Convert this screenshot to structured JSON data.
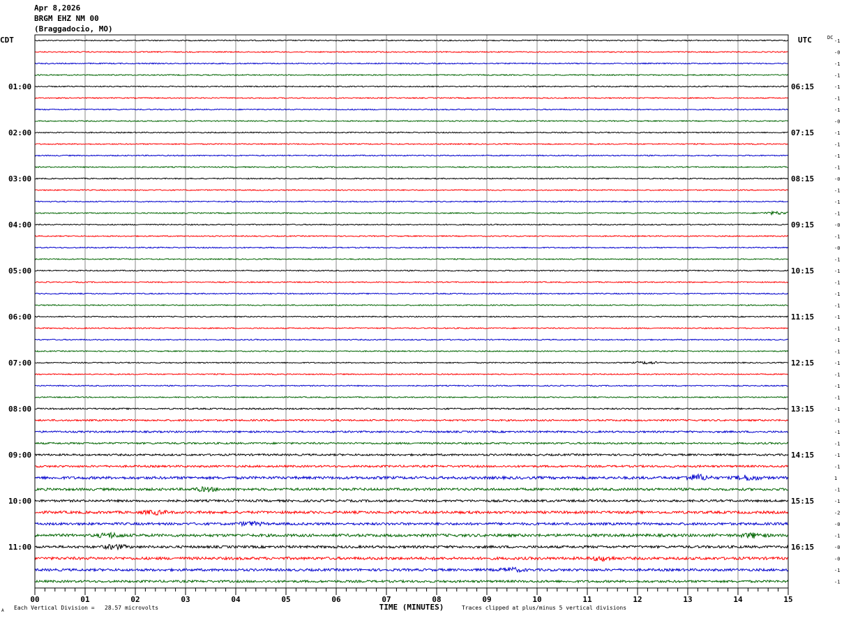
{
  "header": {
    "date": "Apr 8,2026",
    "station": "BRGM EHZ NM 00",
    "location": "(Braggadocio, MO)"
  },
  "labels": {
    "left_tz": "CDT",
    "right_tz": "UTC",
    "dc": "DC",
    "xlabel": "TIME (MINUTES)",
    "footer_left": "Each Vertical Division =   28.57 microvolts",
    "footer_right": "Traces clipped at plus/minus 5 vertical divisions",
    "corner_mark": "A"
  },
  "colors": {
    "trace_cycle": [
      "#000000",
      "#ff0000",
      "#0000cc",
      "#006400"
    ],
    "grid": "#888888",
    "background": "#ffffff"
  },
  "chart_data": {
    "type": "line",
    "title": "BRGM EHZ NM 00",
    "xlabel": "TIME (MINUTES)",
    "xlim": [
      0,
      15
    ],
    "x_tick_labels": [
      "00",
      "01",
      "02",
      "03",
      "04",
      "05",
      "06",
      "07",
      "08",
      "09",
      "10",
      "11",
      "12",
      "13",
      "14",
      "15"
    ],
    "rows_per_hour": 4,
    "row_count": 48,
    "left_hour_labels": [
      "01:00",
      "02:00",
      "03:00",
      "04:00",
      "05:00",
      "06:00",
      "07:00",
      "08:00",
      "09:00",
      "10:00",
      "11:00"
    ],
    "right_hour_labels": [
      "06:15",
      "07:15",
      "08:15",
      "09:15",
      "10:15",
      "11:15",
      "12:15",
      "13:15",
      "14:15",
      "15:15",
      "16:15"
    ],
    "dc_offsets": [
      "-1",
      "-0",
      "-1",
      "-1",
      "-1",
      "-1",
      "-1",
      "-0",
      "-1",
      "-1",
      "-1",
      "-1",
      "-0",
      "-1",
      "-1",
      "-1",
      "-0",
      "-1",
      "-0",
      "-1",
      "-1",
      "-1",
      "-1",
      "-1",
      "-1",
      "-1",
      "-1",
      "-1",
      "-1",
      "-1",
      "-1",
      "-1",
      "-1",
      "-1",
      "-1",
      "-1",
      "-1",
      "-1",
      "1",
      "-1",
      "-1",
      "-2",
      "-0",
      "-1",
      "-0",
      "-0",
      "-1",
      "-1"
    ],
    "noise_amplitude": [
      1,
      1,
      1,
      1,
      1,
      1,
      1,
      1,
      1,
      1,
      1,
      1,
      1,
      1,
      1,
      1,
      1,
      1,
      1,
      1,
      1,
      1,
      1,
      1,
      1,
      1,
      1,
      1,
      1,
      1,
      1,
      1,
      1.3,
      1.5,
      1.6,
      1.6,
      1.7,
      1.8,
      2.4,
      2.2,
      2,
      2.3,
      2.2,
      2.5,
      2.2,
      2.4,
      2.2,
      2
    ],
    "events": [
      {
        "row": 15,
        "minute": 14.75,
        "amplitude": 2.5
      },
      {
        "row": 28,
        "minute": 12.2,
        "amplitude": 2.0
      },
      {
        "row": 38,
        "minute": 13.2,
        "amplitude": 5.0
      },
      {
        "row": 38,
        "minute": 14.2,
        "amplitude": 4.0
      },
      {
        "row": 39,
        "minute": 3.4,
        "amplitude": 3.0
      },
      {
        "row": 41,
        "minute": 2.4,
        "amplitude": 3.0
      },
      {
        "row": 42,
        "minute": 4.3,
        "amplitude": 3.0
      },
      {
        "row": 43,
        "minute": 1.5,
        "amplitude": 3.5
      },
      {
        "row": 43,
        "minute": 14.3,
        "amplitude": 3.5
      },
      {
        "row": 44,
        "minute": 1.6,
        "amplitude": 3.5
      },
      {
        "row": 45,
        "minute": 11.3,
        "amplitude": 3.0
      },
      {
        "row": 46,
        "minute": 9.5,
        "amplitude": 3.0
      }
    ]
  }
}
